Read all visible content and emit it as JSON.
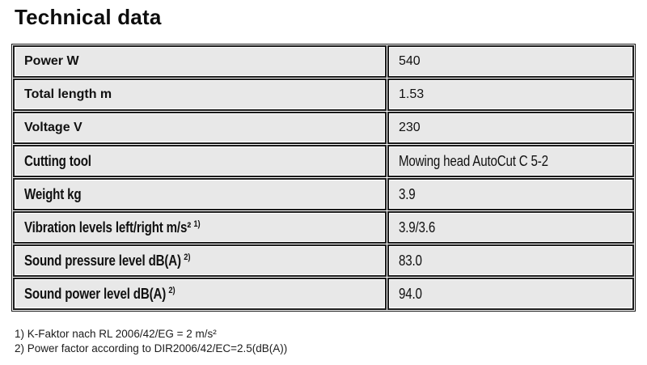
{
  "page": {
    "title": "Technical data"
  },
  "table": {
    "rows": [
      {
        "label": "Power W",
        "label_sup": "",
        "value": "540"
      },
      {
        "label": "Total length m",
        "label_sup": "",
        "value": "1.53"
      },
      {
        "label": "Voltage V",
        "label_sup": "",
        "value": "230"
      },
      {
        "label": "Cutting tool",
        "label_sup": "",
        "value": "Mowing head AutoCut C 5-2"
      },
      {
        "label": "Weight kg",
        "label_sup": "",
        "value": "3.9"
      },
      {
        "label": "Vibration levels left/right m/s²",
        "label_sup": "1)",
        "value": "3.9/3.6"
      },
      {
        "label": "Sound pressure level dB(A)",
        "label_sup": "2)",
        "value": "83.0"
      },
      {
        "label": "Sound power level dB(A)",
        "label_sup": "2)",
        "value": "94.0"
      }
    ]
  },
  "footnotes": [
    "1) K-Faktor nach RL 2006/42/EG = 2 m/s²",
    "2) Power factor according to DIR2006/42/EC=2.5(dB(A))"
  ],
  "colors": {
    "cell_background": "#e8e8e8",
    "table_border": "#1b1b1b",
    "text": "#111111",
    "page_background": "#ffffff"
  }
}
